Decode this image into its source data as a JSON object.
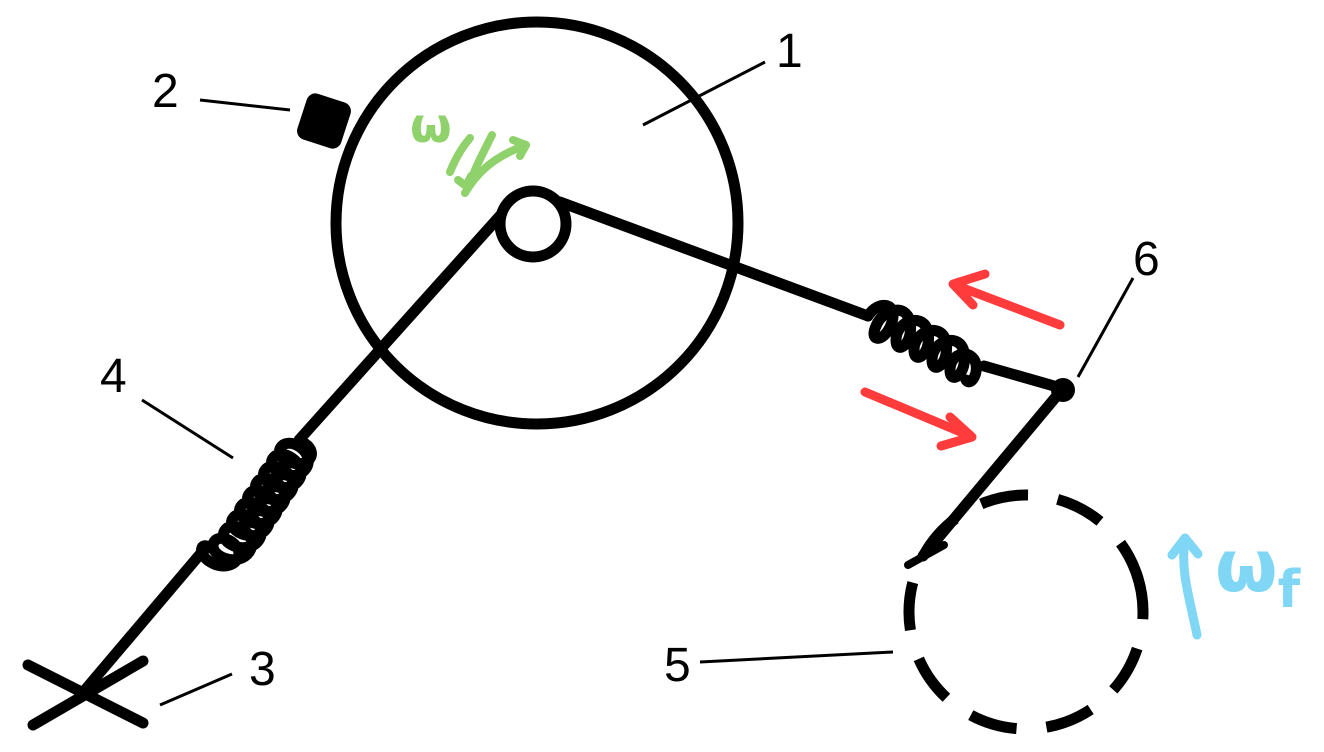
{
  "labels": {
    "one": "1",
    "two": "2",
    "three": "3",
    "four": "4",
    "five": "5",
    "six": "6"
  },
  "annotations": {
    "omega": "ω",
    "omega_f": "ω",
    "omega_f_subscript": "f"
  },
  "colors": {
    "stroke": "#000000",
    "omega_arrows": "#8fd16a",
    "force_arrows": "#ff3b3b",
    "omega_f": "#7fd6f5"
  }
}
